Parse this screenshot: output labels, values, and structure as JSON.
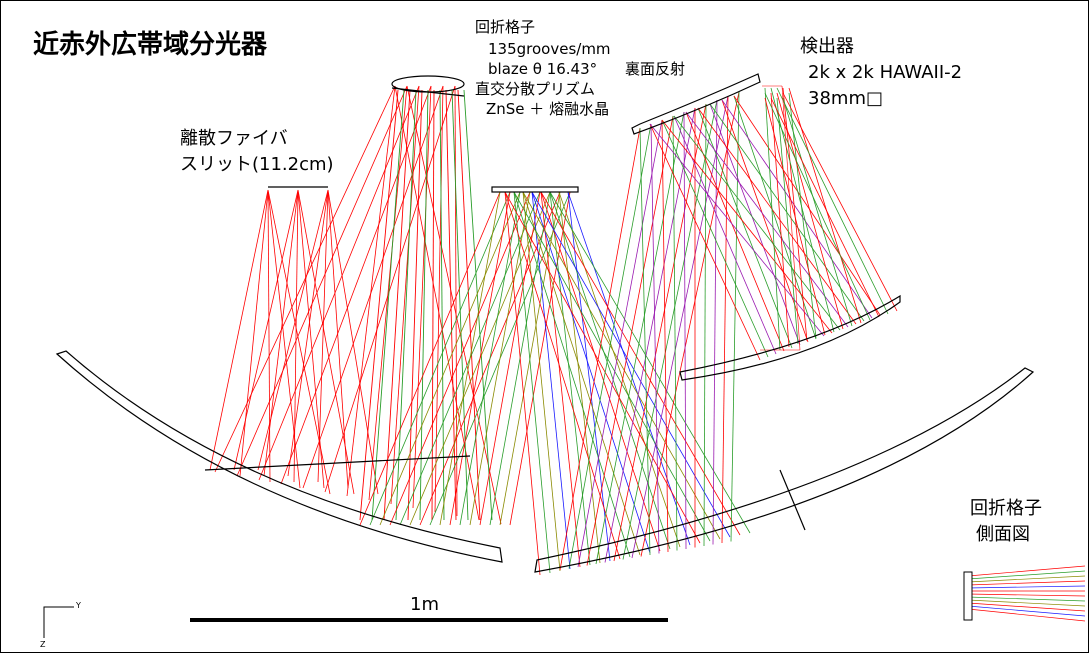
{
  "title": "近赤外広帯域分光器",
  "labels": {
    "grating_name": "回折格子",
    "grating_spec": "135grooves/mm",
    "grating_blaze": "blaze θ 16.43°",
    "prism_name": "直交分散プリズム",
    "prism_material": "ZnSe ＋ 熔融水晶",
    "back_reflection": "裏面反射",
    "detector_name": "検出器",
    "detector_model": "2k x 2k HAWAII-2",
    "detector_size": "38mm□",
    "slit_line1": "離散ファイバ",
    "slit_line2": "スリット(11.2cm)",
    "side_view_line1": "回折格子",
    "side_view_line2": "側面図",
    "scale_bar": "1m",
    "axis_y": "Y",
    "axis_z": "Z"
  },
  "colors": {
    "ray_primary": "#ff0000",
    "ray_green": "#2a9d2a",
    "ray_olive": "#8a8a00",
    "ray_blue": "#1a1aff",
    "ray_purple": "#9a1ab0",
    "outline": "#000000",
    "background": "#ffffff"
  }
}
